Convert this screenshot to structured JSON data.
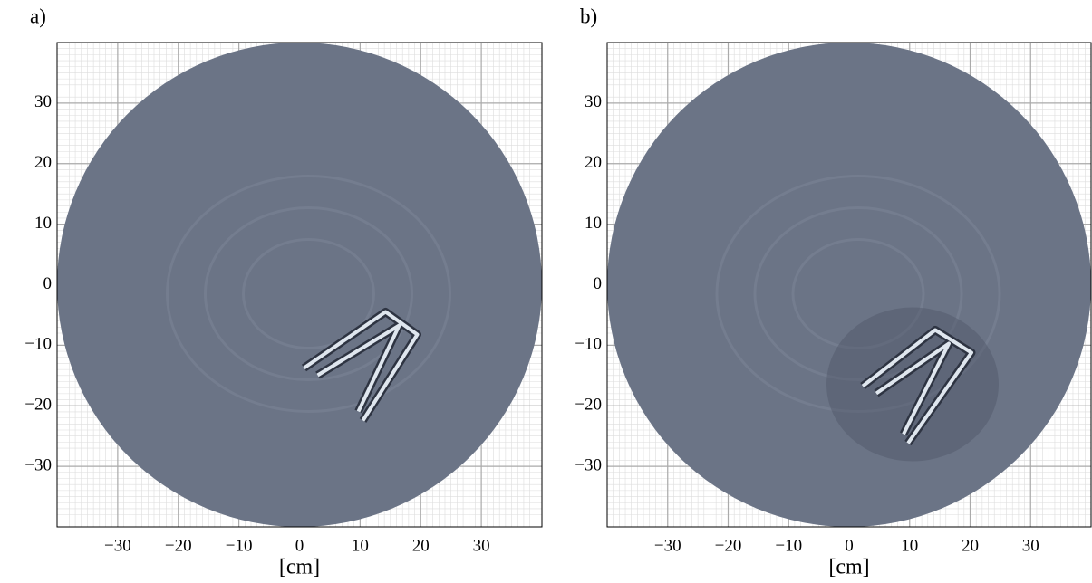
{
  "chart_data": [
    {
      "type": "image",
      "panel_label": "a)",
      "xlabel": "[cm]",
      "xlim": [
        -40,
        40
      ],
      "ylim": [
        -40,
        40
      ],
      "xticks": [
        {
          "value": -30,
          "label": "−30"
        },
        {
          "value": -20,
          "label": "−20"
        },
        {
          "value": -10,
          "label": "−10"
        },
        0,
        10,
        20,
        30
      ],
      "yticks": [
        {
          "value": -30,
          "label": "−30"
        },
        {
          "value": -20,
          "label": "−20"
        },
        {
          "value": -10,
          "label": "−10"
        },
        0,
        10,
        20,
        30
      ],
      "grid": true,
      "color": "#6b7486"
    },
    {
      "type": "image",
      "panel_label": "b)",
      "xlabel": "[cm]",
      "xlim": [
        -40,
        40
      ],
      "ylim": [
        -40,
        40
      ],
      "xticks": [
        {
          "value": -30,
          "label": "−30"
        },
        {
          "value": -20,
          "label": "−20"
        },
        {
          "value": -10,
          "label": "−10"
        },
        0,
        10,
        20,
        30
      ],
      "yticks": [
        {
          "value": -30,
          "label": "−30"
        },
        {
          "value": -20,
          "label": "−20"
        },
        {
          "value": -10,
          "label": "−10"
        },
        0,
        10,
        20,
        30
      ],
      "grid": true,
      "color": "#6b7486"
    }
  ]
}
